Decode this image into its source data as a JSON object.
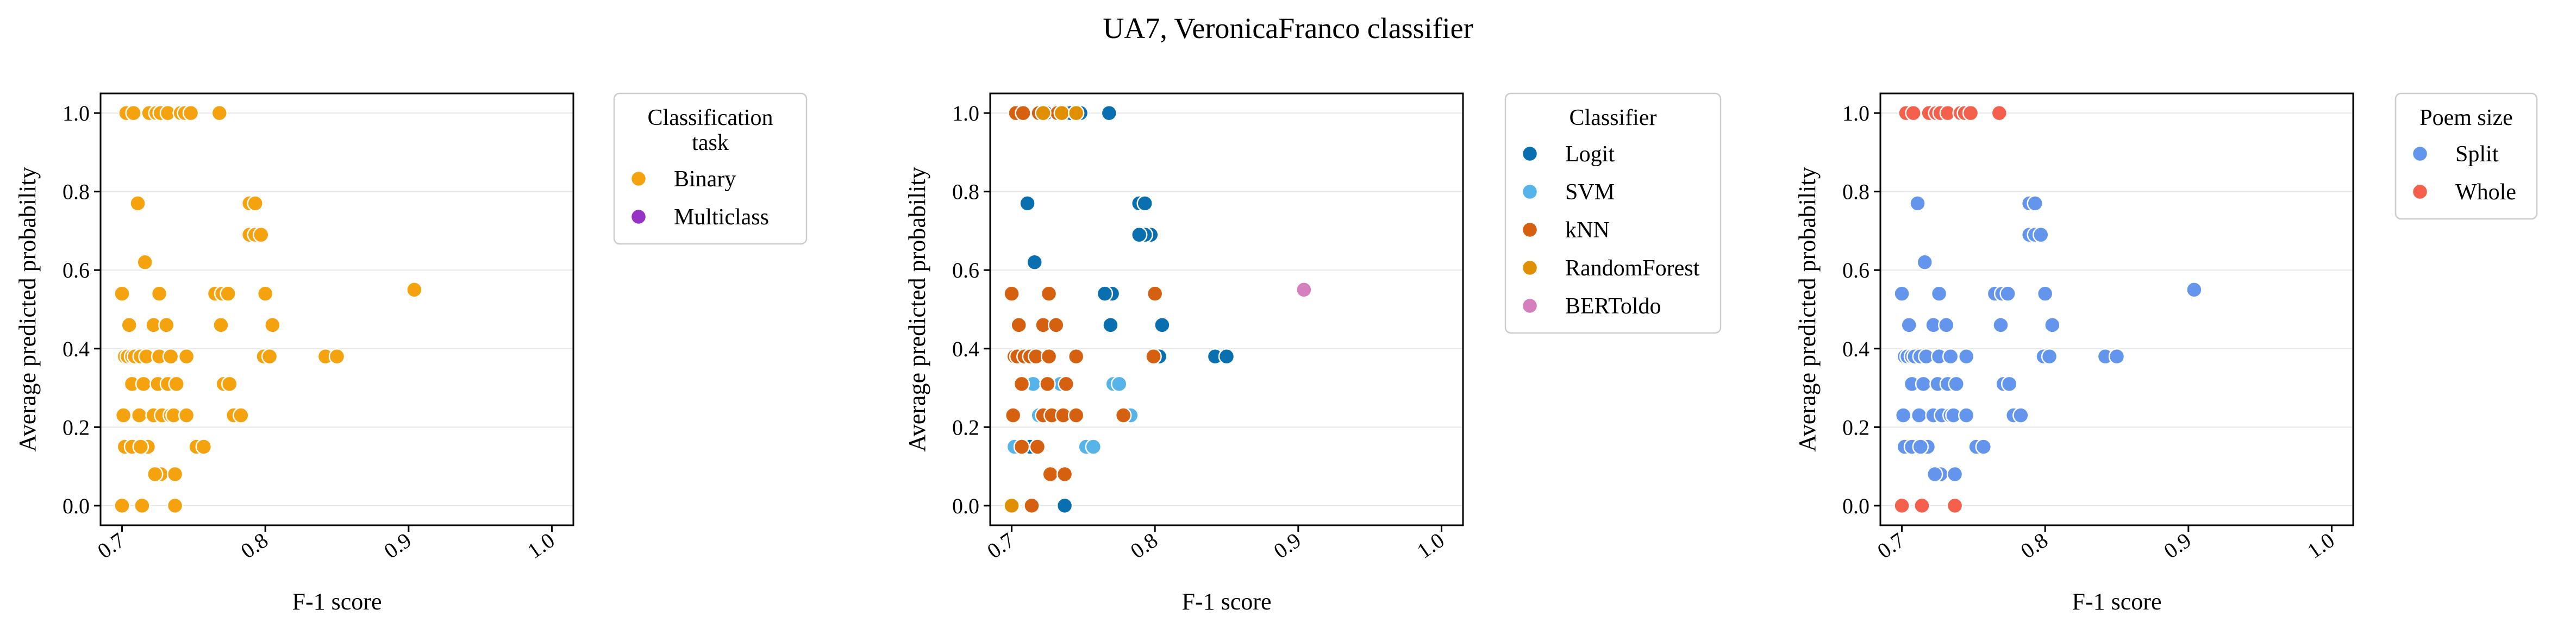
{
  "figure_title": "UA7, VeronicaFranco classifier",
  "chart_data": [
    {
      "type": "scatter",
      "xlabel": "F-1 score",
      "ylabel": "Average predicted probability",
      "xlim": [
        0.685,
        1.015
      ],
      "ylim": [
        -0.05,
        1.05
      ],
      "x_ticks": [
        "0.7",
        "0.8",
        "0.9",
        "1.0"
      ],
      "y_ticks": [
        "0.0",
        "0.2",
        "0.4",
        "0.6",
        "0.8",
        "1.0"
      ],
      "grid": "horizontal",
      "legend_title": "Classification task",
      "legend_title_lines": [
        "Classification",
        "task"
      ],
      "legend_placement": "outside-right-top",
      "series": [
        {
          "name": "Binary",
          "color": "#F5A20F",
          "points": [
            [
              0.7,
              0.0
            ],
            [
              0.714,
              0.0
            ],
            [
              0.737,
              0.0
            ],
            [
              0.727,
              0.08
            ],
            [
              0.723,
              0.08
            ],
            [
              0.737,
              0.08
            ],
            [
              0.702,
              0.15
            ],
            [
              0.707,
              0.15
            ],
            [
              0.718,
              0.15
            ],
            [
              0.713,
              0.15
            ],
            [
              0.752,
              0.15
            ],
            [
              0.757,
              0.15
            ],
            [
              0.701,
              0.23
            ],
            [
              0.712,
              0.23
            ],
            [
              0.722,
              0.23
            ],
            [
              0.728,
              0.23
            ],
            [
              0.734,
              0.23
            ],
            [
              0.736,
              0.23
            ],
            [
              0.745,
              0.23
            ],
            [
              0.778,
              0.23
            ],
            [
              0.783,
              0.23
            ],
            [
              0.707,
              0.31
            ],
            [
              0.715,
              0.31
            ],
            [
              0.725,
              0.31
            ],
            [
              0.732,
              0.31
            ],
            [
              0.738,
              0.31
            ],
            [
              0.771,
              0.31
            ],
            [
              0.775,
              0.31
            ],
            [
              0.702,
              0.38
            ],
            [
              0.704,
              0.38
            ],
            [
              0.707,
              0.38
            ],
            [
              0.709,
              0.38
            ],
            [
              0.713,
              0.38
            ],
            [
              0.717,
              0.38
            ],
            [
              0.726,
              0.38
            ],
            [
              0.734,
              0.38
            ],
            [
              0.745,
              0.38
            ],
            [
              0.799,
              0.38
            ],
            [
              0.803,
              0.38
            ],
            [
              0.842,
              0.38
            ],
            [
              0.85,
              0.38
            ],
            [
              0.705,
              0.46
            ],
            [
              0.722,
              0.46
            ],
            [
              0.731,
              0.46
            ],
            [
              0.769,
              0.46
            ],
            [
              0.805,
              0.46
            ],
            [
              0.7,
              0.54
            ],
            [
              0.726,
              0.54
            ],
            [
              0.765,
              0.54
            ],
            [
              0.77,
              0.54
            ],
            [
              0.774,
              0.54
            ],
            [
              0.8,
              0.54
            ],
            [
              0.904,
              0.55
            ],
            [
              0.716,
              0.62
            ],
            [
              0.789,
              0.69
            ],
            [
              0.793,
              0.69
            ],
            [
              0.797,
              0.69
            ],
            [
              0.711,
              0.77
            ],
            [
              0.789,
              0.77
            ],
            [
              0.793,
              0.77
            ],
            [
              0.703,
              1.0
            ],
            [
              0.708,
              1.0
            ],
            [
              0.719,
              1.0
            ],
            [
              0.724,
              1.0
            ],
            [
              0.727,
              1.0
            ],
            [
              0.732,
              1.0
            ],
            [
              0.741,
              1.0
            ],
            [
              0.744,
              1.0
            ],
            [
              0.748,
              1.0
            ],
            [
              0.768,
              1.0
            ]
          ]
        },
        {
          "name": "Multiclass",
          "color": "#9732C6",
          "points": []
        }
      ]
    },
    {
      "type": "scatter",
      "xlabel": "F-1 score",
      "ylabel": "Average predicted probability",
      "xlim": [
        0.685,
        1.015
      ],
      "ylim": [
        -0.05,
        1.05
      ],
      "x_ticks": [
        "0.7",
        "0.8",
        "0.9",
        "1.0"
      ],
      "y_ticks": [
        "0.0",
        "0.2",
        "0.4",
        "0.6",
        "0.8",
        "1.0"
      ],
      "grid": "horizontal",
      "legend_title": "Classifier",
      "legend_placement": "outside-right-top",
      "series": [
        {
          "name": "Logit",
          "color": "#0A6FAE",
          "points": [
            [
              0.737,
              0.0
            ],
            [
              0.77,
              0.54
            ],
            [
              0.769,
              0.46
            ],
            [
              0.765,
              0.54
            ],
            [
              0.805,
              0.46
            ],
            [
              0.842,
              0.38
            ],
            [
              0.85,
              0.38
            ],
            [
              0.803,
              0.38
            ],
            [
              0.789,
              0.77
            ],
            [
              0.793,
              0.77
            ],
            [
              0.797,
              0.69
            ],
            [
              0.793,
              0.69
            ],
            [
              0.789,
              0.69
            ],
            [
              0.711,
              0.77
            ],
            [
              0.716,
              0.62
            ],
            [
              0.768,
              1.0
            ],
            [
              0.748,
              1.0
            ],
            [
              0.744,
              1.0
            ],
            [
              0.741,
              1.0
            ],
            [
              0.731,
              1.0
            ],
            [
              0.724,
              1.0
            ],
            [
              0.727,
              0.08
            ],
            [
              0.713,
              0.15
            ]
          ]
        },
        {
          "name": "SVM",
          "color": "#56B4E9",
          "points": [
            [
              0.702,
              0.15
            ],
            [
              0.752,
              0.15
            ],
            [
              0.757,
              0.15
            ],
            [
              0.719,
              0.23
            ],
            [
              0.783,
              0.23
            ],
            [
              0.715,
              0.31
            ],
            [
              0.771,
              0.31
            ],
            [
              0.775,
              0.31
            ],
            [
              0.712,
              0.38
            ],
            [
              0.734,
              0.31
            ]
          ]
        },
        {
          "name": "kNN",
          "color": "#D5600F",
          "points": [
            [
              0.714,
              0.0
            ],
            [
              0.727,
              0.08
            ],
            [
              0.737,
              0.08
            ],
            [
              0.707,
              0.15
            ],
            [
              0.718,
              0.15
            ],
            [
              0.701,
              0.23
            ],
            [
              0.722,
              0.23
            ],
            [
              0.728,
              0.23
            ],
            [
              0.736,
              0.23
            ],
            [
              0.745,
              0.23
            ],
            [
              0.778,
              0.23
            ],
            [
              0.707,
              0.31
            ],
            [
              0.725,
              0.31
            ],
            [
              0.738,
              0.31
            ],
            [
              0.702,
              0.38
            ],
            [
              0.704,
              0.38
            ],
            [
              0.709,
              0.38
            ],
            [
              0.713,
              0.38
            ],
            [
              0.717,
              0.38
            ],
            [
              0.726,
              0.38
            ],
            [
              0.745,
              0.38
            ],
            [
              0.799,
              0.38
            ],
            [
              0.705,
              0.46
            ],
            [
              0.722,
              0.46
            ],
            [
              0.731,
              0.46
            ],
            [
              0.7,
              0.54
            ],
            [
              0.726,
              0.54
            ],
            [
              0.8,
              0.54
            ],
            [
              0.703,
              1.0
            ],
            [
              0.708,
              1.0
            ],
            [
              0.719,
              1.0
            ],
            [
              0.732,
              1.0
            ]
          ]
        },
        {
          "name": "RandomForest",
          "color": "#E08F00",
          "points": [
            [
              0.7,
              0.0
            ],
            [
              0.722,
              1.0
            ],
            [
              0.735,
              1.0
            ],
            [
              0.745,
              1.0
            ]
          ]
        },
        {
          "name": "BERToldo",
          "color": "#D57FBF",
          "points": [
            [
              0.904,
              0.55
            ]
          ]
        }
      ]
    },
    {
      "type": "scatter",
      "xlabel": "F-1 score",
      "ylabel": "Average predicted probability",
      "xlim": [
        0.685,
        1.015
      ],
      "ylim": [
        -0.05,
        1.05
      ],
      "x_ticks": [
        "0.7",
        "0.8",
        "0.9",
        "1.0"
      ],
      "y_ticks": [
        "0.0",
        "0.2",
        "0.4",
        "0.6",
        "0.8",
        "1.0"
      ],
      "grid": "horizontal",
      "legend_title": "Poem size",
      "legend_placement": "outside-right-top",
      "series": [
        {
          "name": "Split",
          "color": "#6495ED",
          "points": [
            [
              0.727,
              0.08
            ],
            [
              0.723,
              0.08
            ],
            [
              0.737,
              0.08
            ],
            [
              0.702,
              0.15
            ],
            [
              0.707,
              0.15
            ],
            [
              0.718,
              0.15
            ],
            [
              0.713,
              0.15
            ],
            [
              0.752,
              0.15
            ],
            [
              0.757,
              0.15
            ],
            [
              0.701,
              0.23
            ],
            [
              0.712,
              0.23
            ],
            [
              0.722,
              0.23
            ],
            [
              0.728,
              0.23
            ],
            [
              0.734,
              0.23
            ],
            [
              0.736,
              0.23
            ],
            [
              0.745,
              0.23
            ],
            [
              0.778,
              0.23
            ],
            [
              0.783,
              0.23
            ],
            [
              0.707,
              0.31
            ],
            [
              0.715,
              0.31
            ],
            [
              0.725,
              0.31
            ],
            [
              0.732,
              0.31
            ],
            [
              0.738,
              0.31
            ],
            [
              0.771,
              0.31
            ],
            [
              0.775,
              0.31
            ],
            [
              0.702,
              0.38
            ],
            [
              0.704,
              0.38
            ],
            [
              0.707,
              0.38
            ],
            [
              0.709,
              0.38
            ],
            [
              0.713,
              0.38
            ],
            [
              0.717,
              0.38
            ],
            [
              0.726,
              0.38
            ],
            [
              0.734,
              0.38
            ],
            [
              0.745,
              0.38
            ],
            [
              0.799,
              0.38
            ],
            [
              0.803,
              0.38
            ],
            [
              0.842,
              0.38
            ],
            [
              0.85,
              0.38
            ],
            [
              0.705,
              0.46
            ],
            [
              0.722,
              0.46
            ],
            [
              0.731,
              0.46
            ],
            [
              0.769,
              0.46
            ],
            [
              0.805,
              0.46
            ],
            [
              0.7,
              0.54
            ],
            [
              0.726,
              0.54
            ],
            [
              0.765,
              0.54
            ],
            [
              0.77,
              0.54
            ],
            [
              0.774,
              0.54
            ],
            [
              0.8,
              0.54
            ],
            [
              0.904,
              0.55
            ],
            [
              0.716,
              0.62
            ],
            [
              0.789,
              0.69
            ],
            [
              0.793,
              0.69
            ],
            [
              0.797,
              0.69
            ],
            [
              0.711,
              0.77
            ],
            [
              0.789,
              0.77
            ],
            [
              0.793,
              0.77
            ]
          ]
        },
        {
          "name": "Whole",
          "color": "#F4604B",
          "points": [
            [
              0.7,
              0.0
            ],
            [
              0.714,
              0.0
            ],
            [
              0.737,
              0.0
            ],
            [
              0.703,
              1.0
            ],
            [
              0.708,
              1.0
            ],
            [
              0.719,
              1.0
            ],
            [
              0.724,
              1.0
            ],
            [
              0.727,
              1.0
            ],
            [
              0.732,
              1.0
            ],
            [
              0.741,
              1.0
            ],
            [
              0.744,
              1.0
            ],
            [
              0.748,
              1.0
            ],
            [
              0.768,
              1.0
            ]
          ]
        }
      ]
    }
  ]
}
